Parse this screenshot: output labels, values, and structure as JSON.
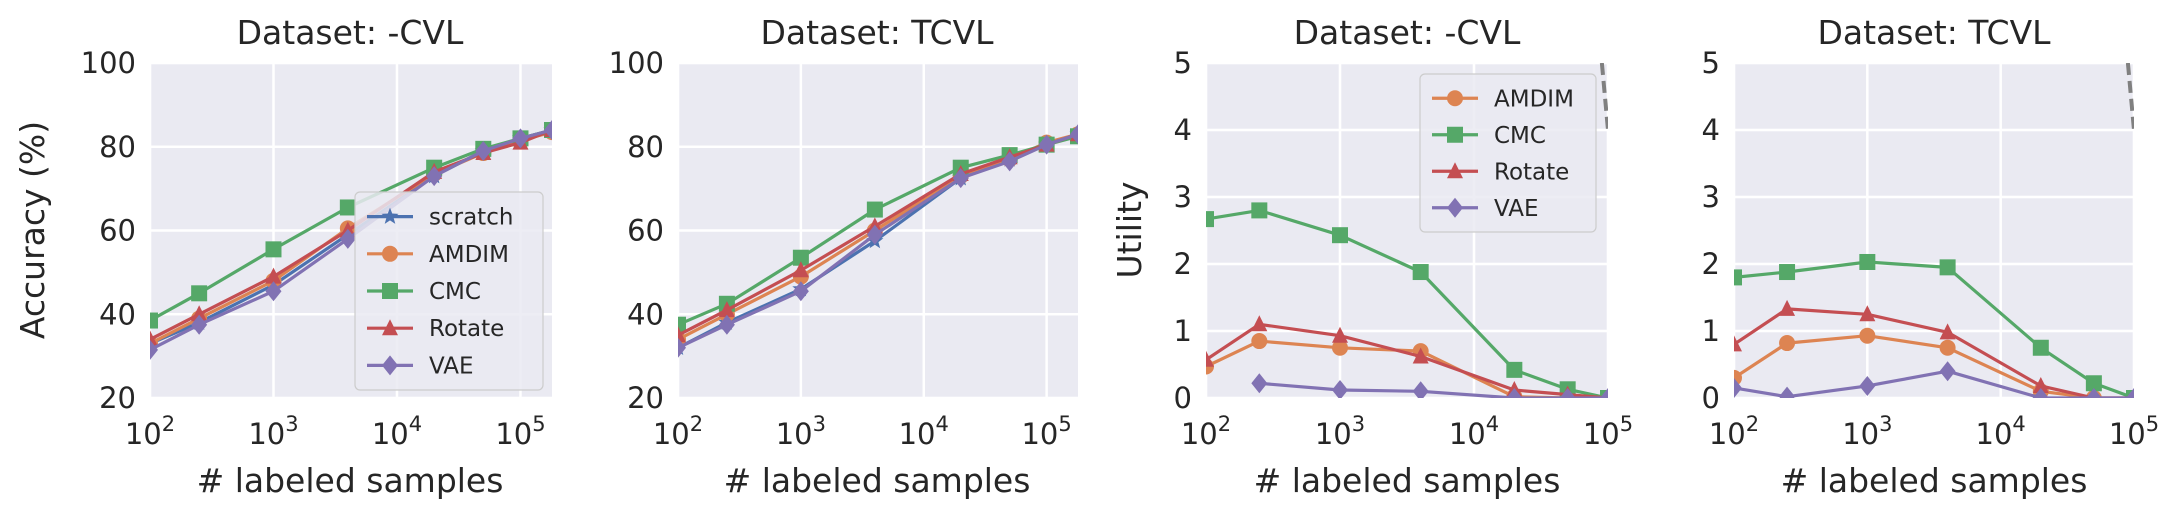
{
  "figure": {
    "panels": [
      {
        "title": "Dataset: -CVL",
        "xlabel": "# labeled samples",
        "ylabel": "Accuracy (%)"
      },
      {
        "title": "Dataset: TCVL",
        "xlabel": "# labeled samples",
        "ylabel": ""
      },
      {
        "title": "Dataset: -CVL",
        "xlabel": "# labeled samples",
        "ylabel": "Utility"
      },
      {
        "title": "Dataset: TCVL",
        "xlabel": "# labeled samples",
        "ylabel": ""
      }
    ]
  },
  "series_styles": {
    "scratch": {
      "color": "#4c72b0",
      "marker": "star"
    },
    "AMDIM": {
      "color": "#dd8452",
      "marker": "circle"
    },
    "CMC": {
      "color": "#55a868",
      "marker": "square"
    },
    "Rotate": {
      "color": "#c44e52",
      "marker": "triangle"
    },
    "VAE": {
      "color": "#8172b3",
      "marker": "diamond"
    }
  },
  "chart_data": [
    {
      "type": "line",
      "title": "Dataset: -CVL",
      "xlabel": "# labeled samples",
      "ylabel": "Accuracy (%)",
      "xscale": "log",
      "xlim": [
        100,
        180000
      ],
      "ylim": [
        20,
        100
      ],
      "xticks": [
        100,
        1000,
        10000,
        100000
      ],
      "xtick_labels": [
        "10^2",
        "10^3",
        "10^4",
        "10^5"
      ],
      "yticks": [
        20,
        40,
        60,
        80,
        100
      ],
      "ytick_labels": [
        "20",
        "40",
        "60",
        "80",
        "100"
      ],
      "grid": true,
      "legend": "lower-right",
      "legend_entries": [
        "scratch",
        "AMDIM",
        "CMC",
        "Rotate",
        "VAE"
      ],
      "x": [
        100,
        250,
        1000,
        4000,
        20000,
        50000,
        100000,
        180000
      ],
      "series": [
        {
          "name": "scratch",
          "values": [
            33,
            38,
            47,
            59,
            73,
            79,
            82,
            84
          ]
        },
        {
          "name": "AMDIM",
          "values": [
            33,
            39,
            48,
            60.5,
            73.5,
            78.5,
            81.5,
            83.5
          ]
        },
        {
          "name": "CMC",
          "values": [
            38.5,
            45,
            55.5,
            65.5,
            75,
            79.5,
            82,
            84
          ]
        },
        {
          "name": "Rotate",
          "values": [
            34,
            40,
            49,
            60,
            74,
            78.5,
            81,
            84
          ]
        },
        {
          "name": "VAE",
          "values": [
            31.5,
            37.5,
            45.5,
            58,
            73,
            79,
            82,
            84
          ]
        }
      ]
    },
    {
      "type": "line",
      "title": "Dataset: TCVL",
      "xlabel": "# labeled samples",
      "ylabel": "",
      "xscale": "log",
      "xlim": [
        100,
        180000
      ],
      "ylim": [
        20,
        100
      ],
      "xticks": [
        100,
        1000,
        10000,
        100000
      ],
      "xtick_labels": [
        "10^2",
        "10^3",
        "10^4",
        "10^5"
      ],
      "yticks": [
        20,
        40,
        60,
        80,
        100
      ],
      "ytick_labels": [
        "20",
        "40",
        "60",
        "80",
        "100"
      ],
      "grid": true,
      "legend": "",
      "legend_entries": [],
      "x": [
        100,
        250,
        1000,
        4000,
        20000,
        50000,
        100000,
        180000
      ],
      "series": [
        {
          "name": "scratch",
          "values": [
            32,
            38,
            46,
            57.5,
            72.5,
            77,
            80.5,
            83
          ]
        },
        {
          "name": "AMDIM",
          "values": [
            34,
            40,
            49,
            60,
            73,
            77,
            81,
            83
          ]
        },
        {
          "name": "CMC",
          "values": [
            37.5,
            42.5,
            53.5,
            65,
            75,
            78,
            80.5,
            82.5
          ]
        },
        {
          "name": "Rotate",
          "values": [
            35,
            41,
            50.5,
            61,
            73.5,
            77.5,
            80.5,
            83
          ]
        },
        {
          "name": "VAE",
          "values": [
            32,
            37.5,
            45.5,
            59,
            72.5,
            76.5,
            80.5,
            83
          ]
        }
      ]
    },
    {
      "type": "line",
      "title": "Dataset: -CVL",
      "xlabel": "# labeled samples",
      "ylabel": "Utility",
      "xscale": "log",
      "xlim": [
        100,
        100000
      ],
      "ylim": [
        0,
        5
      ],
      "xticks": [
        100,
        1000,
        10000,
        100000
      ],
      "xtick_labels": [
        "10^2",
        "10^3",
        "10^4",
        "10^5"
      ],
      "yticks": [
        0,
        1,
        2,
        3,
        4,
        5
      ],
      "ytick_labels": [
        "0",
        "1",
        "2",
        "3",
        "4",
        "5"
      ],
      "grid": true,
      "legend": "top-right",
      "legend_entries": [
        "AMDIM",
        "CMC",
        "Rotate",
        "VAE"
      ],
      "x": [
        100,
        250,
        1000,
        4000,
        20000,
        50000,
        100000
      ],
      "series": [
        {
          "name": "AMDIM",
          "values": [
            0.47,
            0.85,
            0.75,
            0.7,
            0.02,
            0.0,
            0.0
          ]
        },
        {
          "name": "CMC",
          "values": [
            2.67,
            2.8,
            2.43,
            1.88,
            0.42,
            0.13,
            0.0
          ]
        },
        {
          "name": "Rotate",
          "values": [
            0.57,
            1.1,
            0.93,
            0.62,
            0.12,
            0.05,
            0.0
          ]
        },
        {
          "name": "VAE",
          "values": [
            null,
            0.22,
            0.12,
            0.1,
            0.0,
            0.0,
            0.0
          ]
        }
      ],
      "dashed_reference": {
        "color": "#808080",
        "x": [
          90000,
          100000
        ],
        "y": [
          5,
          4
        ]
      }
    },
    {
      "type": "line",
      "title": "Dataset: TCVL",
      "xlabel": "# labeled samples",
      "ylabel": "",
      "xscale": "log",
      "xlim": [
        100,
        100000
      ],
      "ylim": [
        0,
        5
      ],
      "xticks": [
        100,
        1000,
        10000,
        100000
      ],
      "xtick_labels": [
        "10^2",
        "10^3",
        "10^4",
        "10^5"
      ],
      "yticks": [
        0,
        1,
        2,
        3,
        4,
        5
      ],
      "ytick_labels": [
        "0",
        "1",
        "2",
        "3",
        "4",
        "5"
      ],
      "grid": true,
      "legend": "",
      "legend_entries": [],
      "x": [
        100,
        250,
        1000,
        4000,
        20000,
        50000,
        100000
      ],
      "series": [
        {
          "name": "AMDIM",
          "values": [
            0.3,
            0.82,
            0.93,
            0.75,
            0.1,
            0.0,
            0.0
          ]
        },
        {
          "name": "CMC",
          "values": [
            1.8,
            1.88,
            2.03,
            1.95,
            0.75,
            0.22,
            0.0
          ]
        },
        {
          "name": "Rotate",
          "values": [
            0.8,
            1.33,
            1.25,
            0.98,
            0.18,
            0.0,
            0.0
          ]
        },
        {
          "name": "VAE",
          "values": [
            0.15,
            0.02,
            0.18,
            0.4,
            0.0,
            0.0,
            0.0
          ]
        }
      ],
      "dashed_reference": {
        "color": "#808080",
        "x": [
          90000,
          100000
        ],
        "y": [
          5,
          4
        ]
      }
    }
  ]
}
